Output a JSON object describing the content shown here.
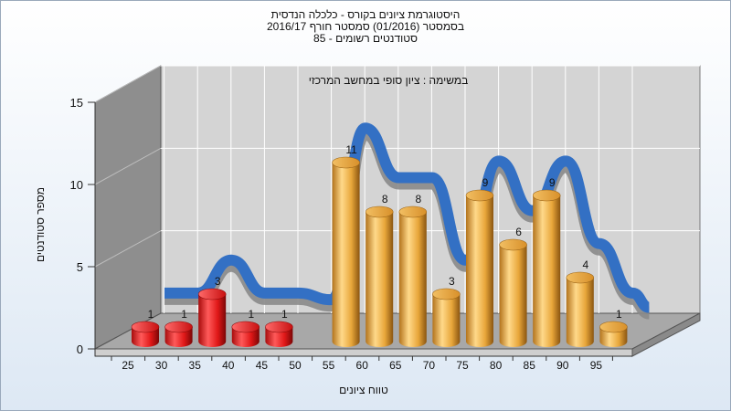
{
  "chart_data": {
    "type": "bar",
    "title_lines": [
      "היסטוגרמת ציונים בקורס - כלכלה הנדסית",
      "בסמסטר  (01/2016)  סמסטר חורף 2016/17",
      "סטודנטים רשומים - 85"
    ],
    "annotation": "במשימה : ציון סופי במחשב המרכזי",
    "xlabel": "טווח ציונים",
    "ylabel": "מספר סטודנטים",
    "ylim": [
      0,
      15
    ],
    "y_ticks": [
      "0",
      "5",
      "10",
      "15"
    ],
    "categories": [
      "25",
      "30",
      "35",
      "40",
      "45",
      "50",
      "55",
      "60",
      "65",
      "70",
      "75",
      "80",
      "85",
      "90",
      "95"
    ],
    "values": [
      1,
      1,
      3,
      1,
      1,
      null,
      11,
      8,
      8,
      3,
      9,
      6,
      9,
      4,
      1
    ],
    "value_labels": [
      "1",
      "1",
      "3",
      "1",
      "1",
      "",
      "11",
      "8",
      "8",
      "3",
      "9",
      "6",
      "9",
      "4",
      "1"
    ],
    "bar_colors": [
      "red",
      "red",
      "red",
      "red",
      "red",
      "",
      "orange",
      "orange",
      "orange",
      "orange",
      "orange",
      "orange",
      "orange",
      "orange",
      "orange"
    ],
    "colors": {
      "fail": "#e01818",
      "pass": "#e8a63a",
      "curve": "#3370c4",
      "wall": "#d3d3d3",
      "side_wall": "#8c8c8c"
    },
    "grid": true
  }
}
